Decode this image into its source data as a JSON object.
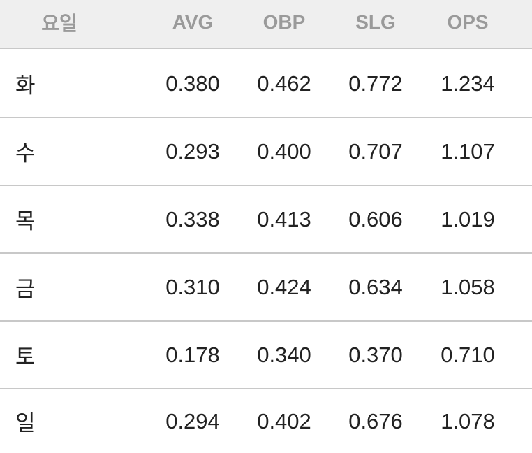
{
  "table": {
    "header": [
      "요일",
      "AVG",
      "OBP",
      "SLG",
      "OPS"
    ],
    "rows": [
      [
        "화",
        "0.380",
        "0.462",
        "0.772",
        "1.234"
      ],
      [
        "수",
        "0.293",
        "0.400",
        "0.707",
        "1.107"
      ],
      [
        "목",
        "0.338",
        "0.413",
        "0.606",
        "1.019"
      ],
      [
        "금",
        "0.310",
        "0.424",
        "0.634",
        "1.058"
      ],
      [
        "토",
        "0.178",
        "0.340",
        "0.370",
        "0.710"
      ],
      [
        "일",
        "0.294",
        "0.402",
        "0.676",
        "1.078"
      ]
    ]
  }
}
